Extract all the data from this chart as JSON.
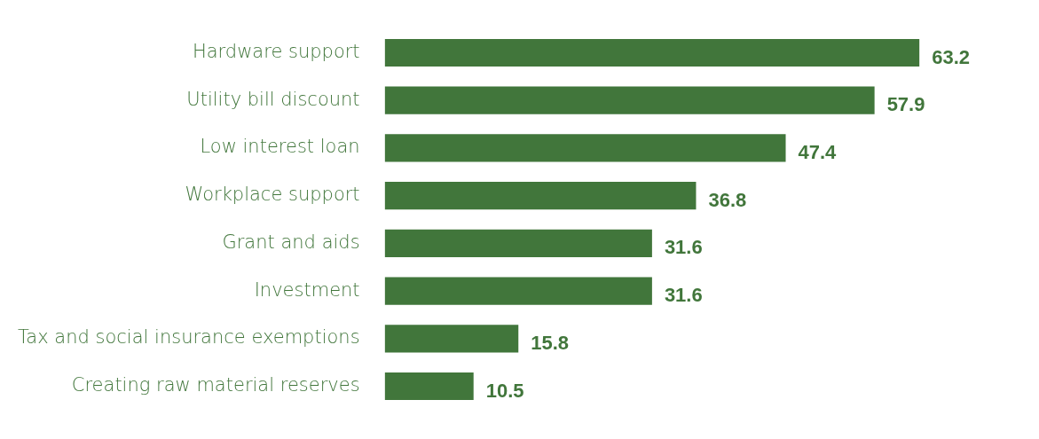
{
  "chart_data": {
    "type": "bar",
    "orientation": "horizontal",
    "categories": [
      "Hardware support",
      "Utility bill discount",
      "Low interest loan",
      "Workplace support",
      "Grant and aids",
      "Investment",
      "Tax and social insurance exemptions",
      "Creating raw material reserves"
    ],
    "values": [
      63.2,
      57.9,
      47.4,
      36.8,
      31.6,
      31.6,
      15.8,
      10.5
    ],
    "color": "#41763b",
    "data_labels": true,
    "legend": false
  }
}
